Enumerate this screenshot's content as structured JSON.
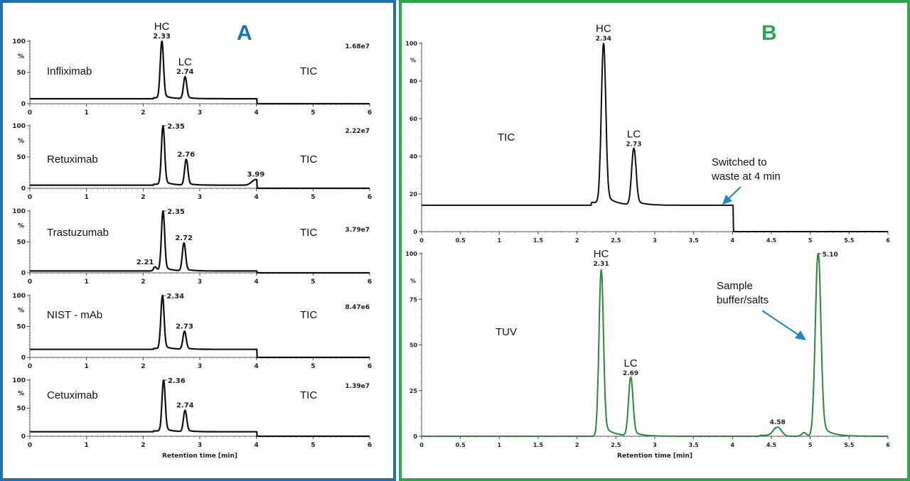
{
  "panels": {
    "a": {
      "letter": "A",
      "color": "#1f6fb2"
    },
    "b": {
      "letter": "B",
      "color": "#2aa84a"
    }
  },
  "labels": {
    "hc": "HC",
    "lc": "LC",
    "tic": "TIC",
    "tuv": "TUV",
    "percent": "%",
    "xlabel": "Retention time [min]",
    "switched_line1": "Switched to",
    "switched_line2": "waste at 4 min",
    "sample_line1": "Sample",
    "sample_line2": "buffer/salts"
  },
  "chart_data": [
    {
      "type": "line",
      "panel": "A",
      "title": "Infliximab",
      "trace": "TIC",
      "intensity": "1.68e7",
      "xlabel": "",
      "ylabel": "%",
      "xlim": [
        0,
        6
      ],
      "ylim": [
        0,
        100
      ],
      "xticks": [
        0,
        1,
        2,
        3,
        4,
        5,
        6
      ],
      "yticks": [
        0,
        50,
        100
      ],
      "baseline": 8,
      "peaks": [
        {
          "x": 2.33,
          "y": 100,
          "label": "2.33",
          "annotation": "HC"
        },
        {
          "x": 2.74,
          "y": 43,
          "label": "2.74",
          "annotation": "LC"
        }
      ],
      "step_drop_at": 4.0
    },
    {
      "type": "line",
      "panel": "A",
      "title": "Retuximab",
      "trace": "TIC",
      "intensity": "2.22e7",
      "xlim": [
        0,
        6
      ],
      "ylim": [
        0,
        100
      ],
      "xticks": [
        0,
        1,
        2,
        3,
        4,
        5,
        6
      ],
      "yticks": [
        0,
        50,
        100
      ],
      "baseline": 5,
      "peaks": [
        {
          "x": 2.35,
          "y": 100,
          "label": "2.35"
        },
        {
          "x": 2.76,
          "y": 46,
          "label": "2.76"
        },
        {
          "x": 3.99,
          "y": 14,
          "label": "3.99"
        }
      ],
      "step_drop_at": 4.0
    },
    {
      "type": "line",
      "panel": "A",
      "title": "Trastuzumab",
      "trace": "TIC",
      "intensity": "3.79e7",
      "xlim": [
        0,
        6
      ],
      "ylim": [
        0,
        100
      ],
      "xticks": [
        0,
        1,
        2,
        3,
        4,
        5,
        6
      ],
      "yticks": [
        0,
        50,
        100
      ],
      "baseline": 3,
      "peaks": [
        {
          "x": 2.21,
          "y": 8,
          "label": "2.21"
        },
        {
          "x": 2.35,
          "y": 100,
          "label": "2.35"
        },
        {
          "x": 2.72,
          "y": 48,
          "label": "2.72"
        }
      ],
      "step_drop_at": 4.0
    },
    {
      "type": "line",
      "panel": "A",
      "title": "NIST  -  mAb",
      "trace": "TIC",
      "intensity": "8.47e6",
      "xlim": [
        0,
        6
      ],
      "ylim": [
        0,
        100
      ],
      "xticks": [
        0,
        1,
        2,
        3,
        4,
        5,
        6
      ],
      "yticks": [
        0,
        50,
        100
      ],
      "baseline": 13,
      "peaks": [
        {
          "x": 2.34,
          "y": 100,
          "label": "2.34"
        },
        {
          "x": 2.73,
          "y": 42,
          "label": "2.73"
        }
      ],
      "step_drop_at": 4.0
    },
    {
      "type": "line",
      "panel": "A",
      "title": "Cetuximab",
      "trace": "TIC",
      "intensity": "1.39e7",
      "xlabel": "Retention time [min]",
      "xlim": [
        0,
        6
      ],
      "ylim": [
        0,
        100
      ],
      "xticks": [
        0,
        1,
        2,
        3,
        4,
        5,
        6
      ],
      "yticks": [
        0,
        50,
        100
      ],
      "baseline": 8,
      "peaks": [
        {
          "x": 2.36,
          "y": 100,
          "label": "2.36"
        },
        {
          "x": 2.74,
          "y": 46,
          "label": "2.74"
        }
      ],
      "step_drop_at": 4.0
    },
    {
      "type": "line",
      "panel": "B",
      "title": "TIC",
      "xlim": [
        0,
        6
      ],
      "ylim": [
        0,
        100
      ],
      "xticks": [
        0,
        0.5,
        1,
        1.5,
        2,
        2.5,
        3,
        3.5,
        4,
        4.5,
        5,
        5.5,
        6
      ],
      "yticks": [
        0,
        20,
        40,
        60,
        80,
        100
      ],
      "ylabel": "%",
      "baseline": 14,
      "peaks": [
        {
          "x": 2.34,
          "y": 100,
          "label": "2.34",
          "annotation": "HC"
        },
        {
          "x": 2.73,
          "y": 44,
          "label": "2.73",
          "annotation": "LC"
        }
      ],
      "step_drop_at": 4.0,
      "annotations": [
        "Switched to waste at 4 min"
      ]
    },
    {
      "type": "line",
      "panel": "B",
      "title": "TUV",
      "xlabel": "Retention time [min]",
      "ylabel": "%",
      "xlim": [
        0,
        6
      ],
      "ylim": [
        0,
        100
      ],
      "xticks": [
        0,
        0.5,
        1,
        1.5,
        2,
        2.5,
        3,
        3.5,
        4,
        4.5,
        5,
        5.5,
        6
      ],
      "yticks": [
        0,
        25,
        50,
        75,
        100
      ],
      "baseline": 0,
      "peaks": [
        {
          "x": 2.31,
          "y": 91,
          "label": "2.31",
          "annotation": "HC"
        },
        {
          "x": 2.69,
          "y": 32,
          "label": "2.69",
          "annotation": "LC"
        },
        {
          "x": 4.58,
          "y": 5,
          "label": "4.58"
        },
        {
          "x": 4.92,
          "y": 2
        },
        {
          "x": 5.1,
          "y": 100,
          "label": "5.10"
        }
      ],
      "annotations": [
        "Sample buffer/salts"
      ]
    }
  ]
}
